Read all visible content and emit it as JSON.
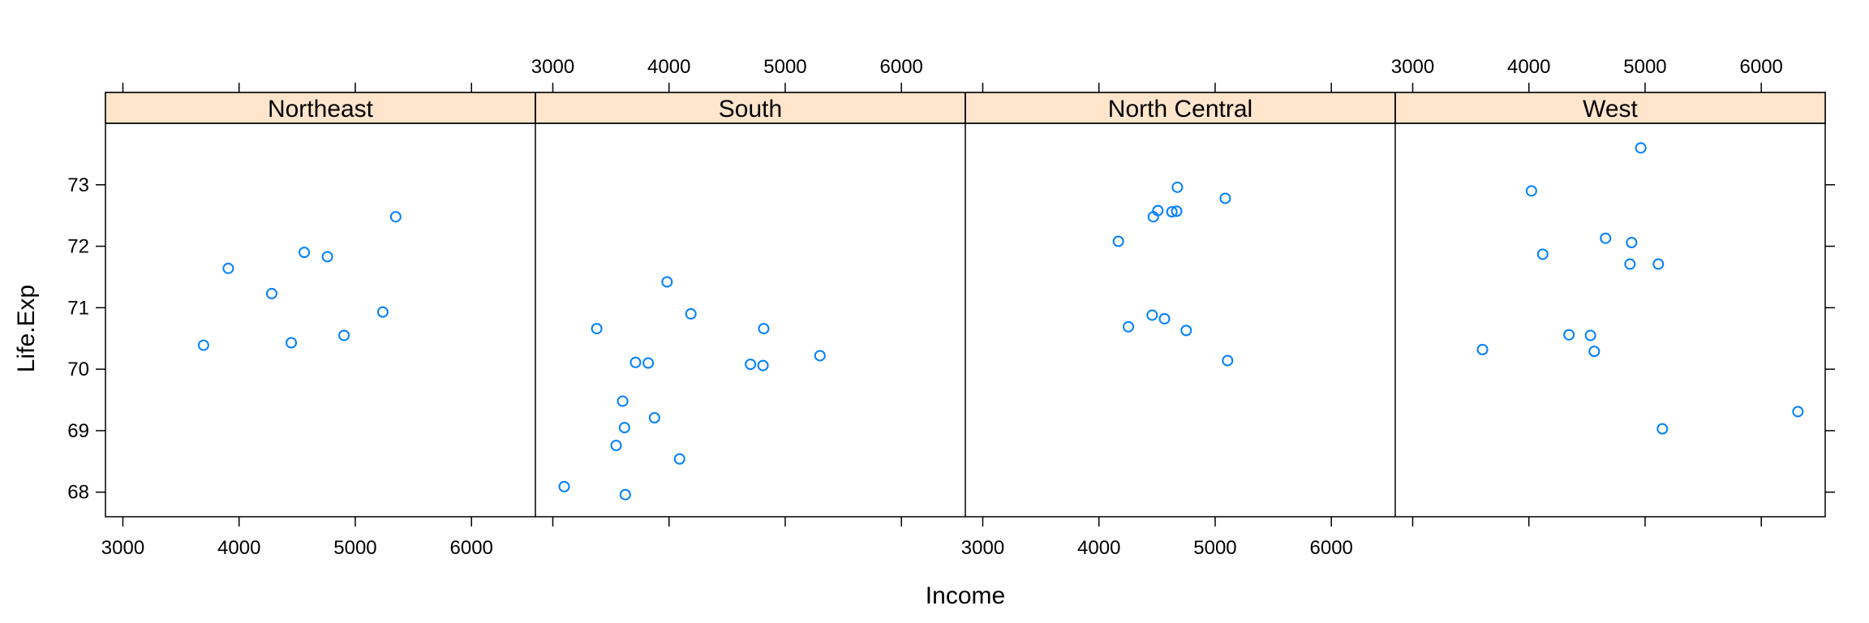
{
  "chart_data": {
    "type": "scatter",
    "layout": "lattice-1x4",
    "xlabel": "Income",
    "ylabel": "Life.Exp",
    "xlim": [
      2850,
      6550
    ],
    "ylim": [
      67.6,
      74.0
    ],
    "xticks": [
      3000,
      4000,
      5000,
      6000
    ],
    "yticks": [
      68,
      69,
      70,
      71,
      72,
      73
    ],
    "strip_color": "#ffe5cc",
    "point_color": "#0080ff",
    "panels": [
      {
        "name": "Northeast",
        "points": [
          {
            "x": 3694,
            "y": 70.39
          },
          {
            "x": 3907,
            "y": 71.64
          },
          {
            "x": 4281,
            "y": 71.23
          },
          {
            "x": 4449,
            "y": 70.43
          },
          {
            "x": 4561,
            "y": 71.9
          },
          {
            "x": 4760,
            "y": 71.83
          },
          {
            "x": 4903,
            "y": 70.55
          },
          {
            "x": 5237,
            "y": 70.93
          },
          {
            "x": 5348,
            "y": 72.48
          }
        ]
      },
      {
        "name": "South",
        "points": [
          {
            "x": 3098,
            "y": 68.09
          },
          {
            "x": 3378,
            "y": 70.66
          },
          {
            "x": 3545,
            "y": 68.76
          },
          {
            "x": 3601,
            "y": 69.48
          },
          {
            "x": 3617,
            "y": 69.05
          },
          {
            "x": 3624,
            "y": 67.96
          },
          {
            "x": 3712,
            "y": 70.11
          },
          {
            "x": 3821,
            "y": 70.1
          },
          {
            "x": 3875,
            "y": 69.21
          },
          {
            "x": 3983,
            "y": 71.42
          },
          {
            "x": 4091,
            "y": 68.54
          },
          {
            "x": 4188,
            "y": 70.9
          },
          {
            "x": 4701,
            "y": 70.08
          },
          {
            "x": 4809,
            "y": 70.06
          },
          {
            "x": 4815,
            "y": 70.66
          },
          {
            "x": 5299,
            "y": 70.22
          }
        ]
      },
      {
        "name": "North Central",
        "points": [
          {
            "x": 4167,
            "y": 72.08
          },
          {
            "x": 4254,
            "y": 70.69
          },
          {
            "x": 4458,
            "y": 70.88
          },
          {
            "x": 4468,
            "y": 72.48
          },
          {
            "x": 4507,
            "y": 72.58
          },
          {
            "x": 4564,
            "y": 70.82
          },
          {
            "x": 4628,
            "y": 72.56
          },
          {
            "x": 4669,
            "y": 72.57
          },
          {
            "x": 4675,
            "y": 72.96
          },
          {
            "x": 4751,
            "y": 70.63
          },
          {
            "x": 5087,
            "y": 72.78
          },
          {
            "x": 5107,
            "y": 70.14
          }
        ]
      },
      {
        "name": "West",
        "points": [
          {
            "x": 3601,
            "y": 70.32
          },
          {
            "x": 4022,
            "y": 72.9
          },
          {
            "x": 4119,
            "y": 71.87
          },
          {
            "x": 4345,
            "y": 70.56
          },
          {
            "x": 4530,
            "y": 70.55
          },
          {
            "x": 4563,
            "y": 70.29
          },
          {
            "x": 4660,
            "y": 72.13
          },
          {
            "x": 4870,
            "y": 71.71
          },
          {
            "x": 4884,
            "y": 72.06
          },
          {
            "x": 4963,
            "y": 73.6
          },
          {
            "x": 5114,
            "y": 71.71
          },
          {
            "x": 5149,
            "y": 69.03
          },
          {
            "x": 6315,
            "y": 69.31
          }
        ]
      }
    ]
  }
}
